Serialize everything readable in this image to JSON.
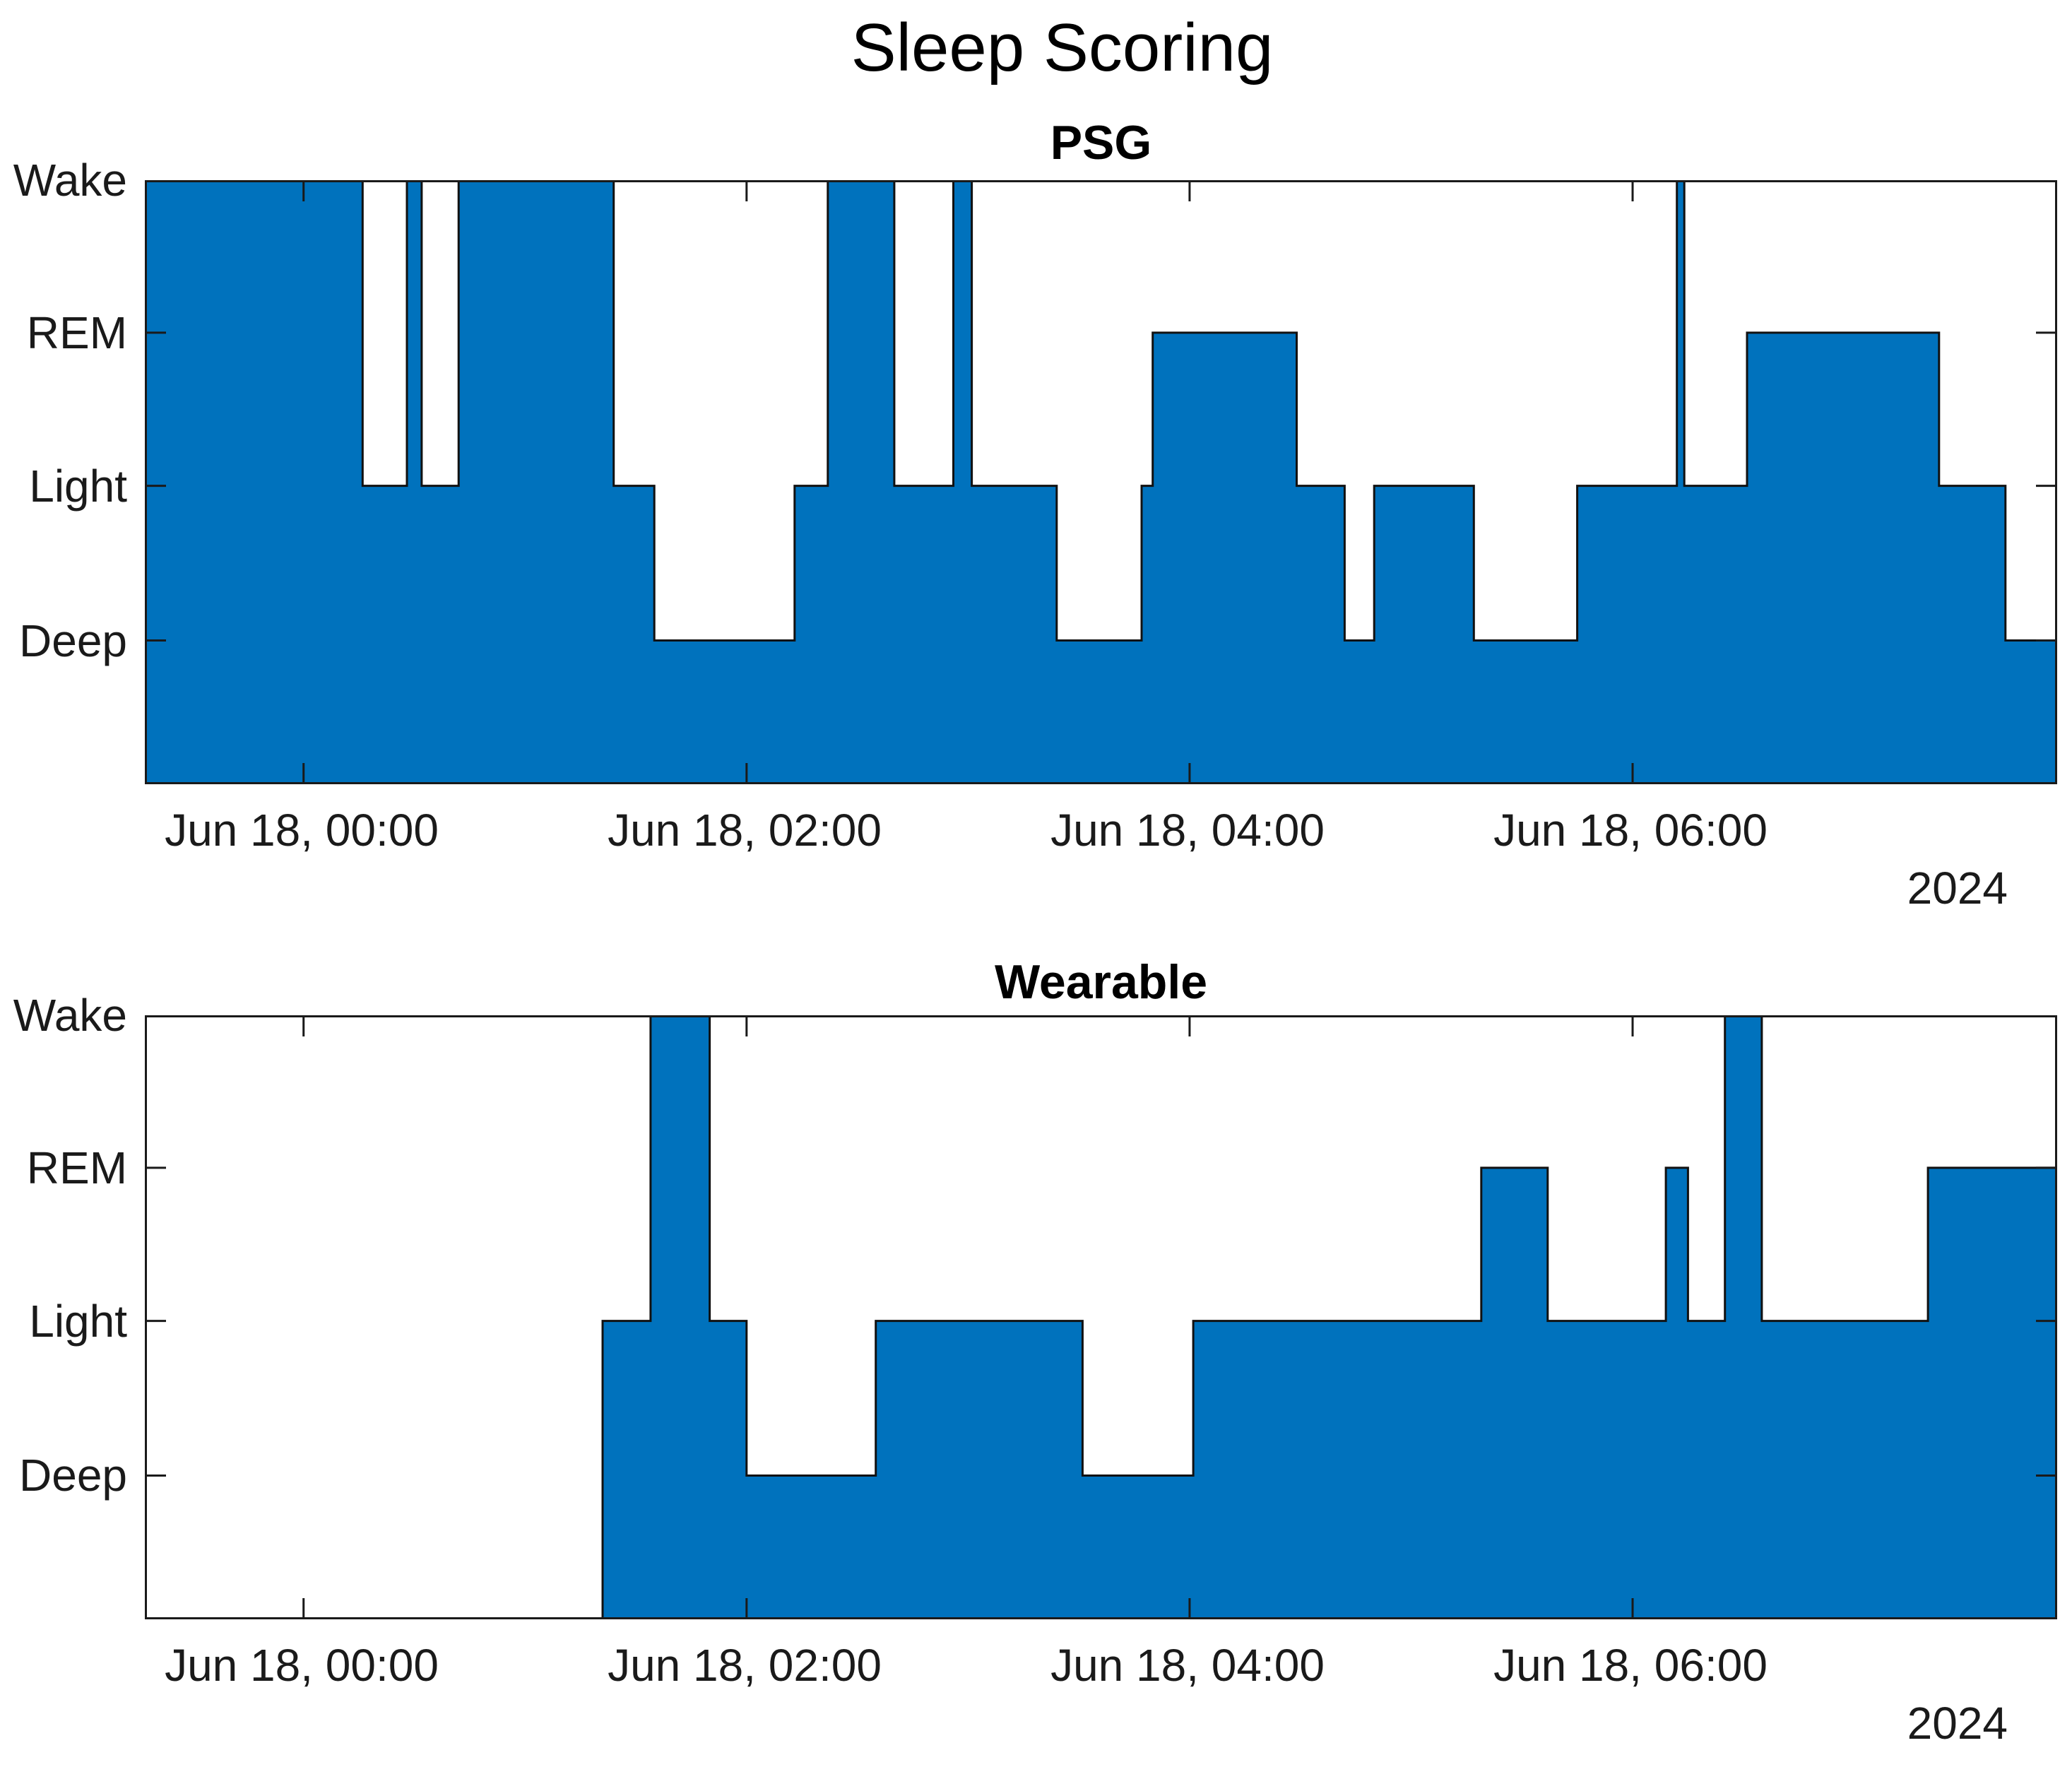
{
  "figure_title": "Sleep Scoring",
  "colors": {
    "fill": "#0072BD",
    "step_line": "#111111",
    "axis": "#1a1a1a",
    "label_text": "#1a1a1a",
    "title_text": "#000000"
  },
  "y_axis": {
    "categories": [
      "Wake",
      "REM",
      "Light",
      "Deep"
    ]
  },
  "x_axis": {
    "start": "23:17",
    "end": "07:55",
    "tick_times": [
      "00:00",
      "02:00",
      "04:00",
      "06:00"
    ],
    "tick_labels": [
      "Jun 18, 00:00",
      "Jun 18, 02:00",
      "Jun 18, 04:00",
      "Jun 18, 06:00"
    ],
    "year_label": "2024"
  },
  "chart_data": [
    {
      "type": "area",
      "subtype": "step-hypnogram",
      "title": "PSG",
      "stage_order": [
        "Wake",
        "REM",
        "Light",
        "Deep"
      ],
      "segments": [
        {
          "stage": "Wake",
          "from": "23:17",
          "to": "00:16"
        },
        {
          "stage": "Light",
          "from": "00:16",
          "to": "00:28"
        },
        {
          "stage": "Wake",
          "from": "00:28",
          "to": "00:32"
        },
        {
          "stage": "Light",
          "from": "00:32",
          "to": "00:42"
        },
        {
          "stage": "Wake",
          "from": "00:42",
          "to": "01:24"
        },
        {
          "stage": "Light",
          "from": "01:24",
          "to": "01:35"
        },
        {
          "stage": "Deep",
          "from": "01:35",
          "to": "02:13"
        },
        {
          "stage": "Light",
          "from": "02:13",
          "to": "02:22"
        },
        {
          "stage": "Wake",
          "from": "02:22",
          "to": "02:40"
        },
        {
          "stage": "Light",
          "from": "02:40",
          "to": "02:56"
        },
        {
          "stage": "Wake",
          "from": "02:56",
          "to": "03:01"
        },
        {
          "stage": "Light",
          "from": "03:01",
          "to": "03:24"
        },
        {
          "stage": "Deep",
          "from": "03:24",
          "to": "03:47"
        },
        {
          "stage": "Light",
          "from": "03:47",
          "to": "03:50"
        },
        {
          "stage": "REM",
          "from": "03:50",
          "to": "04:29"
        },
        {
          "stage": "Light",
          "from": "04:29",
          "to": "04:42"
        },
        {
          "stage": "Deep",
          "from": "04:42",
          "to": "04:50"
        },
        {
          "stage": "Light",
          "from": "04:50",
          "to": "05:17"
        },
        {
          "stage": "Deep",
          "from": "05:17",
          "to": "05:45"
        },
        {
          "stage": "Light",
          "from": "05:45",
          "to": "06:12"
        },
        {
          "stage": "Wake",
          "from": "06:12",
          "to": "06:14"
        },
        {
          "stage": "Light",
          "from": "06:14",
          "to": "06:31"
        },
        {
          "stage": "REM",
          "from": "06:31",
          "to": "07:23"
        },
        {
          "stage": "Light",
          "from": "07:23",
          "to": "07:41"
        },
        {
          "stage": "Deep",
          "from": "07:41",
          "to": "07:55"
        }
      ]
    },
    {
      "type": "area",
      "subtype": "step-hypnogram",
      "title": "Wearable",
      "stage_order": [
        "Wake",
        "REM",
        "Light",
        "Deep"
      ],
      "data_start": "01:21",
      "segments": [
        {
          "stage": "Light",
          "from": "01:21",
          "to": "01:34"
        },
        {
          "stage": "Wake",
          "from": "01:34",
          "to": "01:50"
        },
        {
          "stage": "Light",
          "from": "01:50",
          "to": "02:00"
        },
        {
          "stage": "Deep",
          "from": "02:00",
          "to": "02:35"
        },
        {
          "stage": "Light",
          "from": "02:35",
          "to": "03:31"
        },
        {
          "stage": "Deep",
          "from": "03:31",
          "to": "04:01"
        },
        {
          "stage": "Light",
          "from": "04:01",
          "to": "05:19"
        },
        {
          "stage": "REM",
          "from": "05:19",
          "to": "05:37"
        },
        {
          "stage": "Light",
          "from": "05:37",
          "to": "06:09"
        },
        {
          "stage": "REM",
          "from": "06:09",
          "to": "06:15"
        },
        {
          "stage": "Light",
          "from": "06:15",
          "to": "06:25"
        },
        {
          "stage": "Wake",
          "from": "06:25",
          "to": "06:35"
        },
        {
          "stage": "Light",
          "from": "06:35",
          "to": "07:20"
        },
        {
          "stage": "REM",
          "from": "07:20",
          "to": "07:55"
        }
      ]
    }
  ]
}
